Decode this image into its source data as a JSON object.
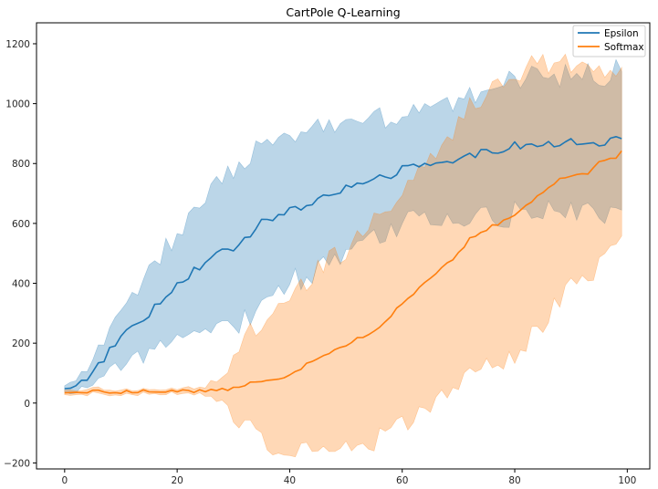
{
  "chart_data": {
    "type": "line",
    "title": "CartPole Q-Learning",
    "xlabel": "",
    "ylabel": "",
    "xlim": [
      -5,
      104
    ],
    "ylim": [
      -220,
      1270
    ],
    "xticks": [
      0,
      20,
      40,
      60,
      80,
      100
    ],
    "yticks": [
      -200,
      0,
      200,
      400,
      600,
      800,
      1000,
      1200
    ],
    "grid": false,
    "legend_position": "top-right",
    "series": [
      {
        "name": "Epsilon",
        "color": "#1f77b4",
        "band_color": "#1f77b4",
        "band_opacity": 0.3,
        "knots": [
          [
            0,
            42
          ],
          [
            5,
            100
          ],
          [
            10,
            225
          ],
          [
            15,
            300
          ],
          [
            20,
            400
          ],
          [
            25,
            470
          ],
          [
            30,
            520
          ],
          [
            35,
            600
          ],
          [
            40,
            640
          ],
          [
            45,
            680
          ],
          [
            50,
            720
          ],
          [
            55,
            740
          ],
          [
            60,
            780
          ],
          [
            65,
            795
          ],
          [
            70,
            810
          ],
          [
            75,
            840
          ],
          [
            80,
            860
          ],
          [
            85,
            860
          ],
          [
            90,
            870
          ],
          [
            95,
            870
          ],
          [
            99,
            880
          ]
        ],
        "std_knots": [
          [
            0,
            12
          ],
          [
            5,
            35
          ],
          [
            10,
            90
          ],
          [
            15,
            140
          ],
          [
            20,
            180
          ],
          [
            25,
            230
          ],
          [
            30,
            260
          ],
          [
            35,
            265
          ],
          [
            40,
            240
          ],
          [
            45,
            230
          ],
          [
            50,
            220
          ],
          [
            55,
            200
          ],
          [
            60,
            170
          ],
          [
            65,
            185
          ],
          [
            70,
            200
          ],
          [
            75,
            220
          ],
          [
            80,
            230
          ],
          [
            85,
            230
          ],
          [
            90,
            230
          ],
          [
            95,
            235
          ],
          [
            99,
            220
          ]
        ],
        "noise": 14,
        "band_noise": 35,
        "n_points": 100
      },
      {
        "name": "Softmax",
        "color": "#ff7f0e",
        "band_color": "#ff7f0e",
        "band_opacity": 0.3,
        "knots": [
          [
            0,
            40
          ],
          [
            10,
            38
          ],
          [
            20,
            40
          ],
          [
            25,
            40
          ],
          [
            28,
            45
          ],
          [
            30,
            50
          ],
          [
            35,
            75
          ],
          [
            40,
            93
          ],
          [
            45,
            150
          ],
          [
            50,
            195
          ],
          [
            55,
            240
          ],
          [
            60,
            330
          ],
          [
            65,
            420
          ],
          [
            70,
            500
          ],
          [
            72,
            550
          ],
          [
            75,
            580
          ],
          [
            80,
            630
          ],
          [
            85,
            700
          ],
          [
            88,
            755
          ],
          [
            90,
            760
          ],
          [
            93,
            770
          ],
          [
            95,
            810
          ],
          [
            98,
            815
          ],
          [
            99,
            840
          ]
        ],
        "std_knots": [
          [
            0,
            8
          ],
          [
            10,
            8
          ],
          [
            20,
            8
          ],
          [
            25,
            12
          ],
          [
            28,
            40
          ],
          [
            30,
            110
          ],
          [
            35,
            200
          ],
          [
            40,
            250
          ],
          [
            45,
            295
          ],
          [
            50,
            320
          ],
          [
            55,
            365
          ],
          [
            60,
            400
          ],
          [
            65,
            420
          ],
          [
            70,
            430
          ],
          [
            75,
            460
          ],
          [
            80,
            480
          ],
          [
            85,
            430
          ],
          [
            90,
            380
          ],
          [
            95,
            330
          ],
          [
            99,
            270
          ]
        ],
        "noise": 6,
        "band_noise": 40,
        "n_points": 100
      }
    ]
  }
}
